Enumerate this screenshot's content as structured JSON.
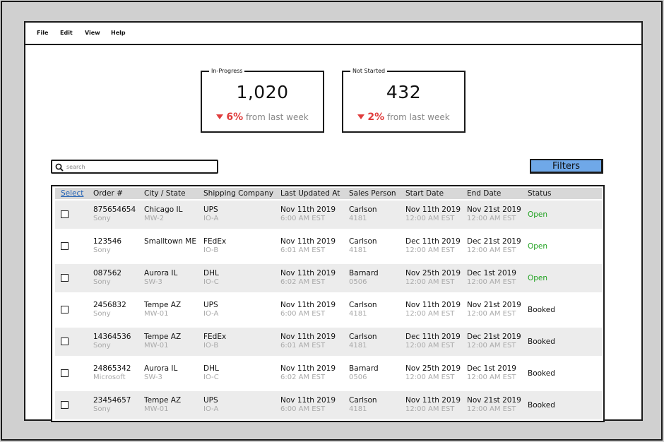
{
  "menu": [
    "File",
    "Edit",
    "View",
    "Help"
  ],
  "stats": [
    {
      "label": "In-Progress",
      "value": "1,020",
      "change": "6%",
      "suffix": "from last week"
    },
    {
      "label": "Not Started",
      "value": "432",
      "change": "2%",
      "suffix": "from last week"
    }
  ],
  "search": {
    "placeholder": "search"
  },
  "filters_label": "Filters",
  "columns": [
    "Select",
    "Order #",
    "City / State",
    "Shipping Company",
    "Last Updated At",
    "Sales Person",
    "Start Date",
    "End Date",
    "Status"
  ],
  "rows": [
    {
      "order": "875654654",
      "client": "Sony",
      "city": "Chicago IL",
      "region": "MW-2",
      "ship": "UPS",
      "ship_code": "IO-A",
      "updated": "Nov 11th 2019",
      "updated_time": "6:00 AM EST",
      "person": "Carlson",
      "person_id": "4181",
      "start": "Nov 11th 2019",
      "start_time": "12:00 AM EST",
      "end": "Nov 21st 2019",
      "end_time": "12:00 AM EST",
      "status": "Open"
    },
    {
      "order": "123546",
      "client": "Sony",
      "city": "Smalltown ME",
      "region": "",
      "ship": "FEdEx",
      "ship_code": "IO-B",
      "updated": "Nov 11th 2019",
      "updated_time": "6:01 AM EST",
      "person": "Carlson",
      "person_id": "4181",
      "start": "Dec 11th 2019",
      "start_time": "12:00 AM EST",
      "end": "Dec 21st 2019",
      "end_time": "12:00 AM EST",
      "status": "Open"
    },
    {
      "order": "087562",
      "client": "Sony",
      "city": "Aurora IL",
      "region": "SW-3",
      "ship": "DHL",
      "ship_code": "IO-C",
      "updated": "Nov 11th 2019",
      "updated_time": "6:02 AM EST",
      "person": "Barnard",
      "person_id": "0506",
      "start": "Nov 25th 2019",
      "start_time": "12:00 AM EST",
      "end": "Dec 1st 2019",
      "end_time": "12:00 AM EST",
      "status": "Open"
    },
    {
      "order": "2456832",
      "client": "Sony",
      "city": "Tempe AZ",
      "region": "MW-01",
      "ship": "UPS",
      "ship_code": "IO-A",
      "updated": "Nov 11th 2019",
      "updated_time": "6:00 AM EST",
      "person": "Carlson",
      "person_id": "4181",
      "start": "Nov 11th 2019",
      "start_time": "12:00 AM EST",
      "end": "Nov 21st 2019",
      "end_time": "12:00 AM EST",
      "status": "Booked"
    },
    {
      "order": "14364536",
      "client": "Sony",
      "city": "Tempe AZ",
      "region": "MW-01",
      "ship": "FEdEx",
      "ship_code": "IO-B",
      "updated": "Nov 11th 2019",
      "updated_time": "6:01 AM EST",
      "person": "Carlson",
      "person_id": "4181",
      "start": "Dec 11th 2019",
      "start_time": "12:00 AM EST",
      "end": "Dec 21st 2019",
      "end_time": "12:00 AM EST",
      "status": "Booked"
    },
    {
      "order": "24865342",
      "client": "Microsoft",
      "city": "Aurora IL",
      "region": "SW-3",
      "ship": "DHL",
      "ship_code": "IO-C",
      "updated": "Nov 11th 2019",
      "updated_time": "6:02 AM EST",
      "person": "Barnard",
      "person_id": "0506",
      "start": "Nov 25th 2019",
      "start_time": "12:00 AM EST",
      "end": "Dec 1st 2019",
      "end_time": "12:00 AM EST",
      "status": "Booked"
    },
    {
      "order": "23454657",
      "client": "Sony",
      "city": "Tempe AZ",
      "region": "MW-01",
      "ship": "UPS",
      "ship_code": "IO-A",
      "updated": "Nov 11th 2019",
      "updated_time": "6:00 AM EST",
      "person": "Carlson",
      "person_id": "4181",
      "start": "Nov 11th 2019",
      "start_time": "12:00 AM EST",
      "end": "Nov 21st 2019",
      "end_time": "12:00 AM EST",
      "status": "Booked"
    }
  ],
  "status_colors": {
    "Open": "#22a322",
    "Booked": "#111111"
  },
  "accent": {
    "down": "#e03c3c",
    "filters": "#6fa8e8",
    "link": "#2262b5"
  }
}
